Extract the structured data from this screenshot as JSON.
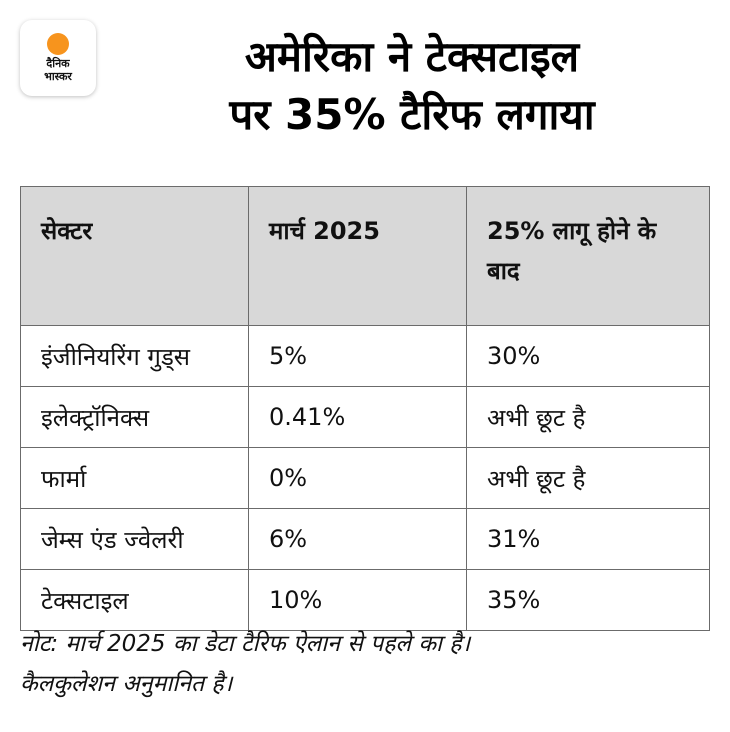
{
  "brand": {
    "logo_line1": "दैनिक",
    "logo_line2": "भास्कर",
    "accent": "#f7941d"
  },
  "headline": {
    "line1": "अमेरिका ने टेक्सटाइल",
    "line2": "पर 35% टैरिफ लगाया"
  },
  "table": {
    "headers": [
      "सेक्टर",
      "मार्च 2025",
      "25% लागू होने के बाद"
    ],
    "rows": [
      [
        "इंजीनियरिंग गुड्स",
        "5%",
        "30%"
      ],
      [
        "इलेक्ट्रॉनिक्स",
        "0.41%",
        "अभी छूट है"
      ],
      [
        "फार्मा",
        "0%",
        "अभी छूट है"
      ],
      [
        "जेम्स एंड ज्वेलरी",
        "6%",
        "31%"
      ],
      [
        "टेक्सटाइल",
        "10%",
        "35%"
      ]
    ]
  },
  "footnote": {
    "line1": "नोट: मार्च 2025 का डेटा टैरिफ ऐलान से पहले का है।",
    "line2": "कैलकुलेशन अनुमानित है।"
  }
}
